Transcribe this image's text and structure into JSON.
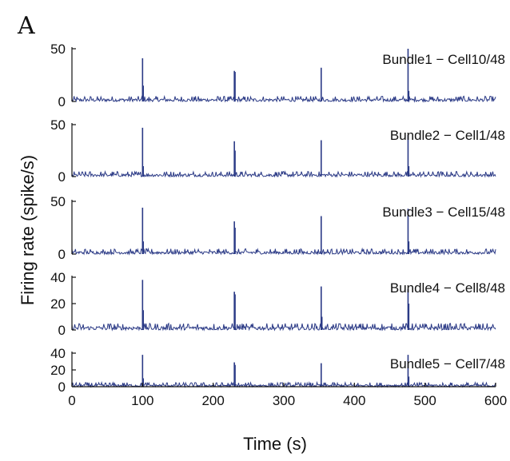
{
  "figure": {
    "panel_letter": "A",
    "xlabel": "Time (s)",
    "ylabel": "Firing rate (spike/s)"
  },
  "chart_data": {
    "type": "line",
    "xlim": [
      0,
      600
    ],
    "xticks": [
      0,
      100,
      200,
      300,
      400,
      500,
      600
    ],
    "xlabel": "Time (s)",
    "ylabel": "Firing rate (spike/s)",
    "grid": false,
    "baseline_noise_max": 5,
    "panels": [
      {
        "title": "Bundle1 − Cell10/48",
        "ylim": [
          0,
          50
        ],
        "yticks": [
          0,
          50
        ],
        "peaks": [
          {
            "x": 100,
            "y": 41
          },
          {
            "x": 101,
            "y": 15
          },
          {
            "x": 230,
            "y": 29
          },
          {
            "x": 231,
            "y": 28
          },
          {
            "x": 353,
            "y": 32
          },
          {
            "x": 476,
            "y": 50
          },
          {
            "x": 477,
            "y": 10
          }
        ]
      },
      {
        "title": "Bundle2 − Cell1/48",
        "ylim": [
          0,
          50
        ],
        "yticks": [
          0,
          50
        ],
        "peaks": [
          {
            "x": 100,
            "y": 47
          },
          {
            "x": 101,
            "y": 10
          },
          {
            "x": 230,
            "y": 34
          },
          {
            "x": 231,
            "y": 25
          },
          {
            "x": 353,
            "y": 35
          },
          {
            "x": 476,
            "y": 40
          },
          {
            "x": 477,
            "y": 10
          }
        ]
      },
      {
        "title": "Bundle3 − Cell15/48",
        "ylim": [
          0,
          50
        ],
        "yticks": [
          0,
          50
        ],
        "peaks": [
          {
            "x": 100,
            "y": 44
          },
          {
            "x": 101,
            "y": 12
          },
          {
            "x": 230,
            "y": 31
          },
          {
            "x": 231,
            "y": 25
          },
          {
            "x": 353,
            "y": 36
          },
          {
            "x": 476,
            "y": 43
          },
          {
            "x": 477,
            "y": 12
          }
        ]
      },
      {
        "title": "Bundle4 − Cell8/48",
        "ylim": [
          0,
          40
        ],
        "yticks": [
          0,
          20,
          40
        ],
        "peaks": [
          {
            "x": 100,
            "y": 38
          },
          {
            "x": 101,
            "y": 15
          },
          {
            "x": 230,
            "y": 29
          },
          {
            "x": 231,
            "y": 27
          },
          {
            "x": 353,
            "y": 33
          },
          {
            "x": 354,
            "y": 10
          },
          {
            "x": 476,
            "y": 31
          },
          {
            "x": 477,
            "y": 20
          }
        ]
      },
      {
        "title": "Bundle5 − Cell7/48",
        "ylim": [
          0,
          40
        ],
        "yticks": [
          0,
          20,
          40
        ],
        "peaks": [
          {
            "x": 100,
            "y": 38
          },
          {
            "x": 101,
            "y": 10
          },
          {
            "x": 230,
            "y": 29
          },
          {
            "x": 231,
            "y": 26
          },
          {
            "x": 353,
            "y": 28
          },
          {
            "x": 476,
            "y": 38
          },
          {
            "x": 477,
            "y": 12
          }
        ]
      }
    ]
  }
}
